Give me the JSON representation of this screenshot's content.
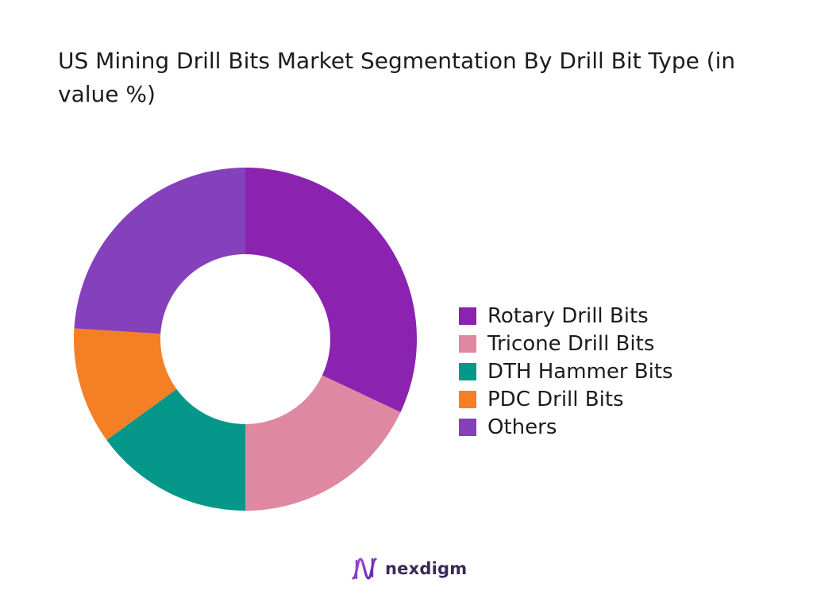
{
  "chart_data": {
    "type": "pie",
    "title": "US Mining Drill Bits Market Segmentation By Drill Bit Type (in value %)",
    "donut": true,
    "categories": [
      "Rotary Drill Bits",
      "Tricone Drill Bits",
      "DTH Hammer Bits",
      "PDC Drill Bits",
      "Others"
    ],
    "values": [
      32,
      18,
      15,
      11,
      24
    ],
    "colors": [
      "#8b22b0",
      "#df88a2",
      "#05978a",
      "#f57f25",
      "#8540bb"
    ],
    "legend_position": "right"
  },
  "brand": {
    "name": "nexdigm",
    "icon": "nexdigm-logo-icon"
  }
}
